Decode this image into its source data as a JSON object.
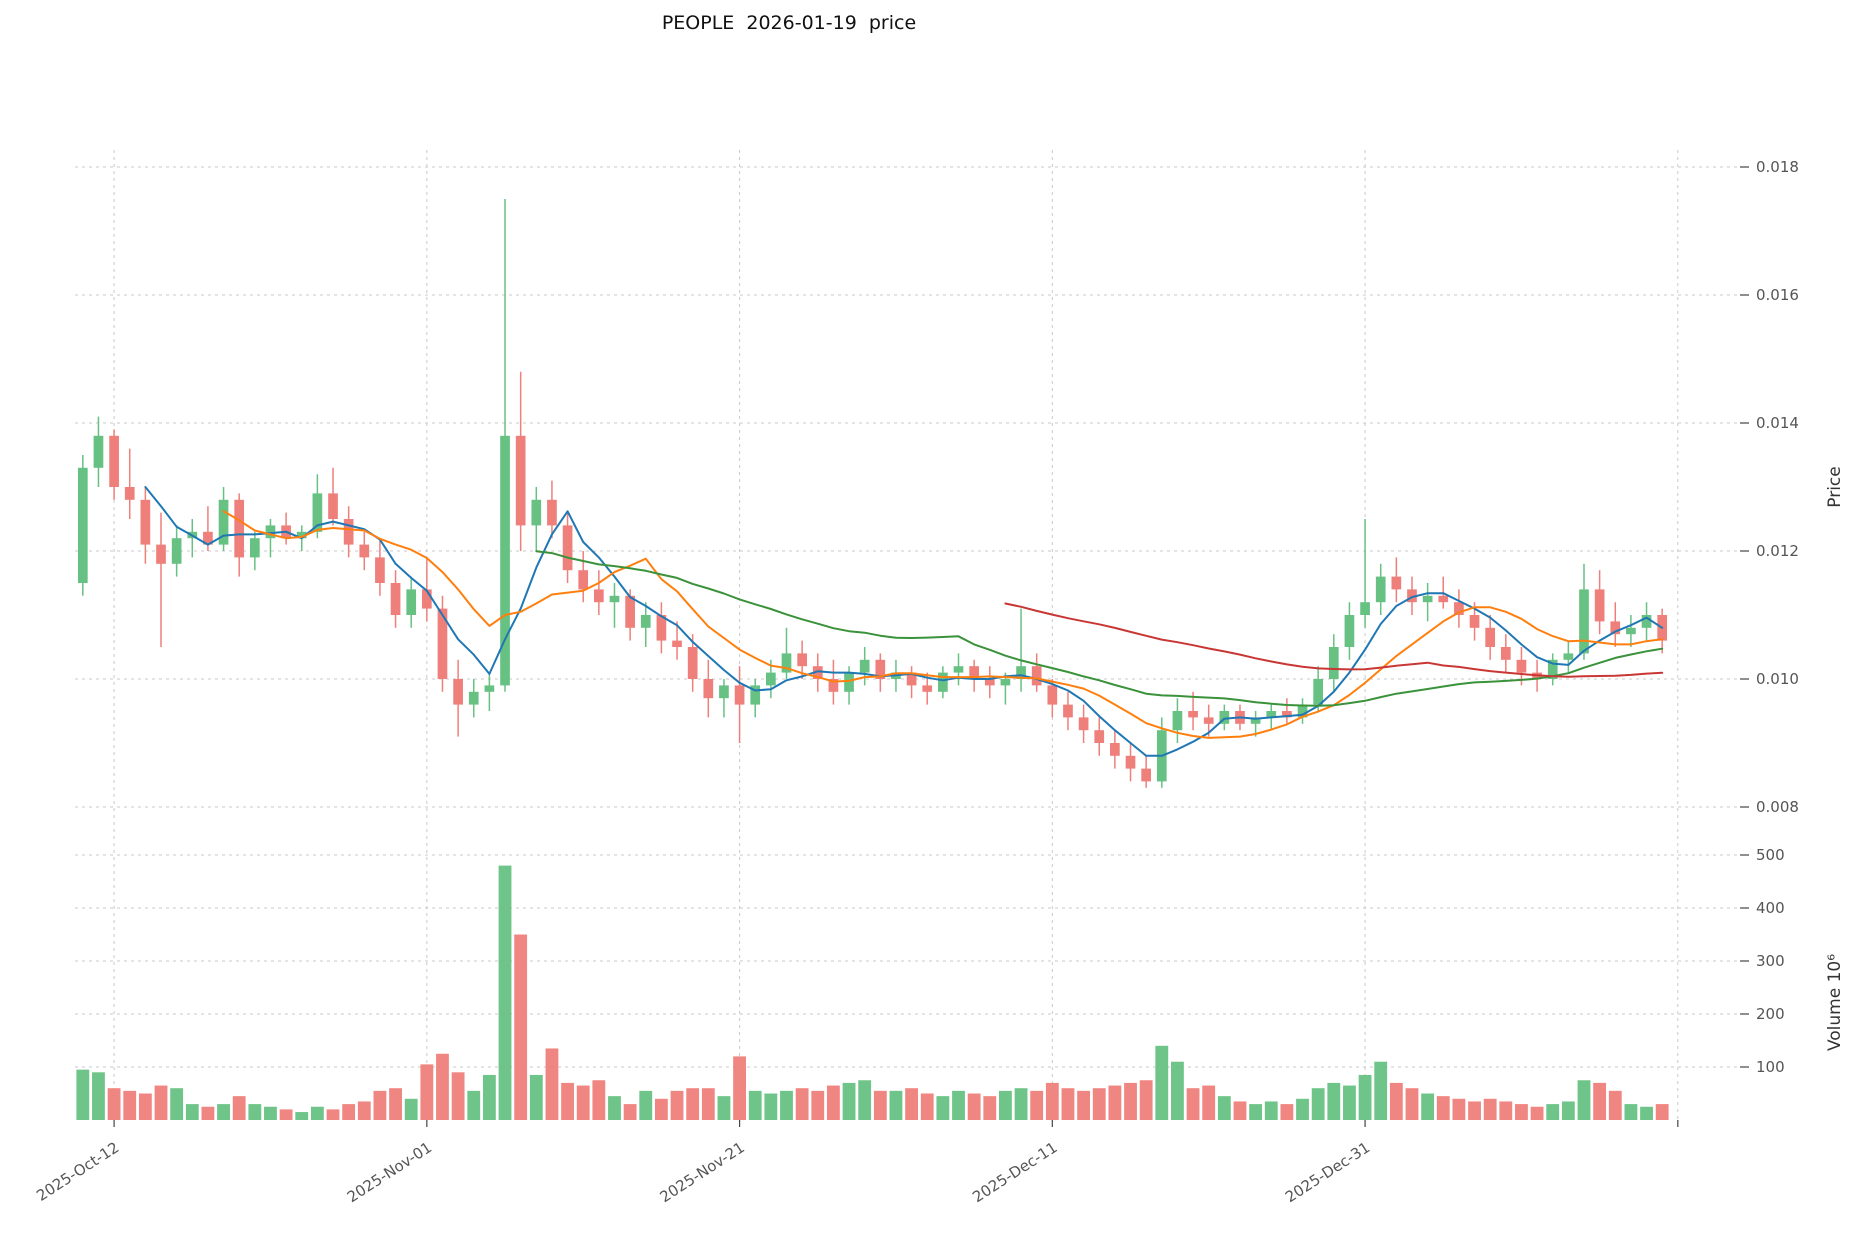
{
  "chart_data": {
    "type": "candlestick+volume",
    "title": "PEOPLE  2026-01-19  price",
    "ylabel": "Price",
    "ylabel_volume": "Volume  10⁶",
    "price_min": 0.008,
    "price_max": 0.018,
    "volume_max": 500,
    "price_ticks": [
      [
        0.008,
        "0.008"
      ],
      [
        0.01,
        "0.010"
      ],
      [
        0.012,
        "0.012"
      ],
      [
        0.014,
        "0.014"
      ],
      [
        0.016,
        "0.016"
      ],
      [
        0.018,
        "0.018"
      ]
    ],
    "volume_ticks": [
      [
        100,
        "100"
      ],
      [
        200,
        "200"
      ],
      [
        300,
        "300"
      ],
      [
        400,
        "400"
      ],
      [
        500,
        "500"
      ]
    ],
    "x_ticks": [
      [
        2,
        "2025-Oct-12"
      ],
      [
        22,
        "2025-Nov-01"
      ],
      [
        42,
        "2025-Nov-21"
      ],
      [
        62,
        "2025-Dec-11"
      ],
      [
        82,
        "2025-Dec-31"
      ],
      [
        102,
        ""
      ]
    ],
    "legend_position": "none",
    "grid": "dashed",
    "colors": {
      "up": "#67c183",
      "down": "#ef7f7a",
      "grid": "#c9c9c9",
      "text": "#555555",
      "tick": "#444444"
    },
    "mav": [
      {
        "window": 5,
        "color": "#1f77b4"
      },
      {
        "window": 10,
        "color": "#ff7f0e"
      },
      {
        "window": 30,
        "color": "#3a923a"
      },
      {
        "window": 60,
        "color": "#c93735"
      }
    ],
    "candles": [
      [
        "2025-10-10",
        0.0115,
        0.0135,
        0.0113,
        0.0133,
        95
      ],
      [
        "2025-10-11",
        0.0133,
        0.0141,
        0.013,
        0.0138,
        90
      ],
      [
        "2025-10-12",
        0.0138,
        0.0139,
        0.0128,
        0.013,
        60
      ],
      [
        "2025-10-13",
        0.013,
        0.0136,
        0.0125,
        0.0128,
        55
      ],
      [
        "2025-10-14",
        0.0128,
        0.013,
        0.0118,
        0.0121,
        50
      ],
      [
        "2025-10-15",
        0.0121,
        0.0126,
        0.0105,
        0.0118,
        65
      ],
      [
        "2025-10-16",
        0.0118,
        0.0124,
        0.0116,
        0.0122,
        60
      ],
      [
        "2025-10-17",
        0.0122,
        0.0125,
        0.0119,
        0.0123,
        30
      ],
      [
        "2025-10-18",
        0.0123,
        0.0127,
        0.012,
        0.0121,
        25
      ],
      [
        "2025-10-19",
        0.0121,
        0.013,
        0.012,
        0.0128,
        30
      ],
      [
        "2025-10-20",
        0.0128,
        0.0129,
        0.0116,
        0.0119,
        45
      ],
      [
        "2025-10-21",
        0.0119,
        0.0123,
        0.0117,
        0.0122,
        30
      ],
      [
        "2025-10-22",
        0.0122,
        0.0125,
        0.0119,
        0.0124,
        25
      ],
      [
        "2025-10-23",
        0.0124,
        0.0126,
        0.0121,
        0.0122,
        20
      ],
      [
        "2025-10-24",
        0.0122,
        0.0124,
        0.012,
        0.0123,
        15
      ],
      [
        "2025-10-25",
        0.0123,
        0.0132,
        0.0122,
        0.0129,
        25
      ],
      [
        "2025-10-26",
        0.0129,
        0.0133,
        0.0124,
        0.0125,
        20
      ],
      [
        "2025-10-27",
        0.0125,
        0.0127,
        0.0119,
        0.0121,
        30
      ],
      [
        "2025-10-28",
        0.0121,
        0.0123,
        0.0117,
        0.0119,
        35
      ],
      [
        "2025-10-29",
        0.0119,
        0.0122,
        0.0113,
        0.0115,
        55
      ],
      [
        "2025-10-30",
        0.0115,
        0.0117,
        0.0108,
        0.011,
        60
      ],
      [
        "2025-10-31",
        0.011,
        0.0116,
        0.0108,
        0.0114,
        40
      ],
      [
        "2025-11-01",
        0.0114,
        0.0119,
        0.0109,
        0.0111,
        105
      ],
      [
        "2025-11-02",
        0.0111,
        0.0113,
        0.0098,
        0.01,
        125
      ],
      [
        "2025-11-03",
        0.01,
        0.0103,
        0.0091,
        0.0096,
        90
      ],
      [
        "2025-11-04",
        0.0096,
        0.01,
        0.0094,
        0.0098,
        55
      ],
      [
        "2025-11-05",
        0.0098,
        0.0101,
        0.0095,
        0.0099,
        85
      ],
      [
        "2025-11-06",
        0.0099,
        0.0175,
        0.0098,
        0.0138,
        480
      ],
      [
        "2025-11-07",
        0.0138,
        0.0148,
        0.012,
        0.0124,
        350
      ],
      [
        "2025-11-08",
        0.0124,
        0.013,
        0.012,
        0.0128,
        85
      ],
      [
        "2025-11-09",
        0.0128,
        0.0131,
        0.0122,
        0.0124,
        135
      ],
      [
        "2025-11-10",
        0.0124,
        0.0126,
        0.0115,
        0.0117,
        70
      ],
      [
        "2025-11-11",
        0.0117,
        0.012,
        0.0112,
        0.0114,
        65
      ],
      [
        "2025-11-12",
        0.0114,
        0.0117,
        0.011,
        0.0112,
        75
      ],
      [
        "2025-11-13",
        0.0112,
        0.0115,
        0.0108,
        0.0113,
        45
      ],
      [
        "2025-11-14",
        0.0113,
        0.0114,
        0.0106,
        0.0108,
        30
      ],
      [
        "2025-11-15",
        0.0108,
        0.0112,
        0.0105,
        0.011,
        55
      ],
      [
        "2025-11-16",
        0.011,
        0.0112,
        0.0104,
        0.0106,
        40
      ],
      [
        "2025-11-17",
        0.0106,
        0.0109,
        0.0103,
        0.0105,
        55
      ],
      [
        "2025-11-18",
        0.0105,
        0.0107,
        0.0098,
        0.01,
        60
      ],
      [
        "2025-11-19",
        0.01,
        0.0103,
        0.0094,
        0.0097,
        60
      ],
      [
        "2025-11-20",
        0.0097,
        0.01,
        0.0094,
        0.0099,
        45
      ],
      [
        "2025-11-21",
        0.0099,
        0.0102,
        0.009,
        0.0096,
        120
      ],
      [
        "2025-11-22",
        0.0096,
        0.01,
        0.0094,
        0.0099,
        55
      ],
      [
        "2025-11-23",
        0.0099,
        0.0103,
        0.0097,
        0.0101,
        50
      ],
      [
        "2025-11-24",
        0.0101,
        0.0108,
        0.01,
        0.0104,
        55
      ],
      [
        "2025-11-25",
        0.0104,
        0.0106,
        0.01,
        0.0102,
        60
      ],
      [
        "2025-11-26",
        0.0102,
        0.0104,
        0.0098,
        0.01,
        55
      ],
      [
        "2025-11-27",
        0.01,
        0.0103,
        0.0096,
        0.0098,
        65
      ],
      [
        "2025-11-28",
        0.0098,
        0.0102,
        0.0096,
        0.0101,
        70
      ],
      [
        "2025-11-29",
        0.0101,
        0.0105,
        0.0099,
        0.0103,
        75
      ],
      [
        "2025-11-30",
        0.0103,
        0.0104,
        0.0098,
        0.01,
        55
      ],
      [
        "2025-12-01",
        0.01,
        0.0103,
        0.0098,
        0.0101,
        55
      ],
      [
        "2025-12-02",
        0.0101,
        0.0102,
        0.0097,
        0.0099,
        60
      ],
      [
        "2025-12-03",
        0.0099,
        0.0101,
        0.0096,
        0.0098,
        50
      ],
      [
        "2025-12-04",
        0.0098,
        0.0102,
        0.0097,
        0.0101,
        45
      ],
      [
        "2025-12-05",
        0.0101,
        0.0104,
        0.0099,
        0.0102,
        55
      ],
      [
        "2025-12-06",
        0.0102,
        0.0103,
        0.0098,
        0.01,
        50
      ],
      [
        "2025-12-07",
        0.01,
        0.0102,
        0.0097,
        0.0099,
        45
      ],
      [
        "2025-12-08",
        0.0099,
        0.0101,
        0.0096,
        0.01,
        55
      ],
      [
        "2025-12-09",
        0.01,
        0.0111,
        0.0098,
        0.0102,
        60
      ],
      [
        "2025-12-10",
        0.0102,
        0.0104,
        0.0098,
        0.0099,
        55
      ],
      [
        "2025-12-11",
        0.0099,
        0.01,
        0.0094,
        0.0096,
        70
      ],
      [
        "2025-12-12",
        0.0096,
        0.0098,
        0.0092,
        0.0094,
        60
      ],
      [
        "2025-12-13",
        0.0094,
        0.0096,
        0.009,
        0.0092,
        55
      ],
      [
        "2025-12-14",
        0.0092,
        0.0094,
        0.0088,
        0.009,
        60
      ],
      [
        "2025-12-15",
        0.009,
        0.0092,
        0.0086,
        0.0088,
        65
      ],
      [
        "2025-12-16",
        0.0088,
        0.009,
        0.0084,
        0.0086,
        70
      ],
      [
        "2025-12-17",
        0.0086,
        0.0088,
        0.0083,
        0.0084,
        75
      ],
      [
        "2025-12-18",
        0.0084,
        0.0094,
        0.0083,
        0.0092,
        140
      ],
      [
        "2025-12-19",
        0.0092,
        0.0097,
        0.009,
        0.0095,
        110
      ],
      [
        "2025-12-20",
        0.0095,
        0.0098,
        0.0092,
        0.0094,
        60
      ],
      [
        "2025-12-21",
        0.0094,
        0.0096,
        0.0091,
        0.0093,
        65
      ],
      [
        "2025-12-22",
        0.0093,
        0.0096,
        0.0092,
        0.0095,
        45
      ],
      [
        "2025-12-23",
        0.0095,
        0.0096,
        0.0092,
        0.0093,
        35
      ],
      [
        "2025-12-24",
        0.0093,
        0.0095,
        0.0091,
        0.0094,
        30
      ],
      [
        "2025-12-25",
        0.0094,
        0.0096,
        0.0092,
        0.0095,
        35
      ],
      [
        "2025-12-26",
        0.0095,
        0.0097,
        0.0093,
        0.0094,
        30
      ],
      [
        "2025-12-27",
        0.0094,
        0.0097,
        0.0093,
        0.0096,
        40
      ],
      [
        "2025-12-28",
        0.0096,
        0.0102,
        0.0095,
        0.01,
        60
      ],
      [
        "2025-12-29",
        0.01,
        0.0107,
        0.0098,
        0.0105,
        70
      ],
      [
        "2025-12-30",
        0.0105,
        0.0112,
        0.0103,
        0.011,
        65
      ],
      [
        "2025-12-31",
        0.011,
        0.0125,
        0.0108,
        0.0112,
        85
      ],
      [
        "2026-01-01",
        0.0112,
        0.0118,
        0.011,
        0.0116,
        110
      ],
      [
        "2026-01-02",
        0.0116,
        0.0119,
        0.0112,
        0.0114,
        70
      ],
      [
        "2026-01-03",
        0.0114,
        0.0116,
        0.011,
        0.0112,
        60
      ],
      [
        "2026-01-04",
        0.0112,
        0.0115,
        0.0109,
        0.0113,
        50
      ],
      [
        "2026-01-05",
        0.0113,
        0.0116,
        0.0111,
        0.0112,
        45
      ],
      [
        "2026-01-06",
        0.0112,
        0.0114,
        0.0108,
        0.011,
        40
      ],
      [
        "2026-01-07",
        0.011,
        0.0112,
        0.0106,
        0.0108,
        35
      ],
      [
        "2026-01-08",
        0.0108,
        0.011,
        0.0103,
        0.0105,
        40
      ],
      [
        "2026-01-09",
        0.0105,
        0.0107,
        0.0101,
        0.0103,
        35
      ],
      [
        "2026-01-10",
        0.0103,
        0.0105,
        0.0099,
        0.0101,
        30
      ],
      [
        "2026-01-11",
        0.0101,
        0.0103,
        0.0098,
        0.01,
        25
      ],
      [
        "2026-01-12",
        0.01,
        0.0104,
        0.0099,
        0.0103,
        30
      ],
      [
        "2026-01-13",
        0.0103,
        0.0106,
        0.0101,
        0.0104,
        35
      ],
      [
        "2026-01-14",
        0.0104,
        0.0118,
        0.0103,
        0.0114,
        75
      ],
      [
        "2026-01-15",
        0.0114,
        0.0117,
        0.0107,
        0.0109,
        70
      ],
      [
        "2026-01-16",
        0.0109,
        0.0112,
        0.0105,
        0.0107,
        55
      ],
      [
        "2026-01-17",
        0.0107,
        0.011,
        0.0105,
        0.0108,
        30
      ],
      [
        "2026-01-18",
        0.0108,
        0.0112,
        0.0106,
        0.011,
        25
      ],
      [
        "2026-01-19",
        0.011,
        0.0111,
        0.0104,
        0.0106,
        30
      ]
    ]
  }
}
